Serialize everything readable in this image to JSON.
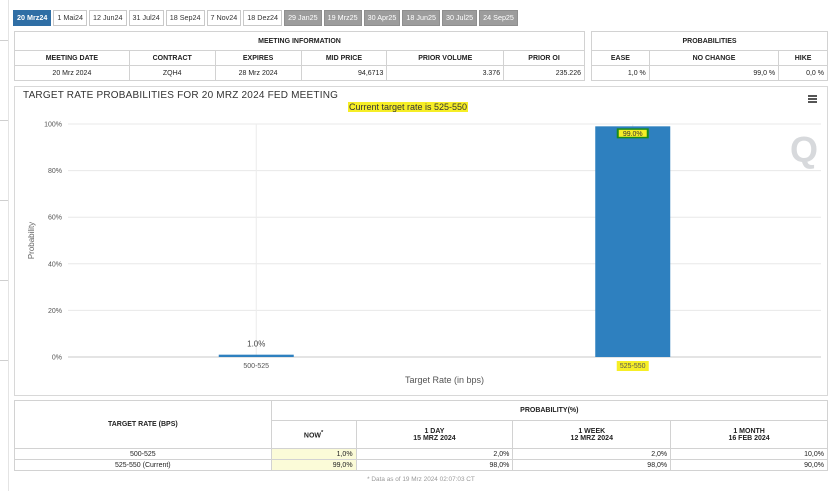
{
  "tabs": [
    {
      "label": "20 Mrz24",
      "state": "active"
    },
    {
      "label": "1 Mai24",
      "state": "normal"
    },
    {
      "label": "12 Jun24",
      "state": "normal"
    },
    {
      "label": "31 Jul24",
      "state": "normal"
    },
    {
      "label": "18 Sep24",
      "state": "normal"
    },
    {
      "label": "7 Nov24",
      "state": "normal"
    },
    {
      "label": "18 Dez24",
      "state": "normal"
    },
    {
      "label": "29 Jan25",
      "state": "gray"
    },
    {
      "label": "19 Mrz25",
      "state": "gray"
    },
    {
      "label": "30 Apr25",
      "state": "gray"
    },
    {
      "label": "18 Jun25",
      "state": "gray"
    },
    {
      "label": "30 Jul25",
      "state": "gray"
    },
    {
      "label": "24 Sep25",
      "state": "gray"
    }
  ],
  "meeting_info": {
    "header": "MEETING INFORMATION",
    "columns": [
      "MEETING DATE",
      "CONTRACT",
      "EXPIRES",
      "MID PRICE",
      "PRIOR VOLUME",
      "PRIOR OI"
    ],
    "row": [
      "20 Mrz 2024",
      "ZQH4",
      "28 Mrz 2024",
      "94,6713",
      "3.376",
      "235.226"
    ]
  },
  "probabilities": {
    "header": "PROBABILITIES",
    "columns": [
      "EASE",
      "NO CHANGE",
      "HIKE"
    ],
    "row": [
      "1,0 %",
      "99,0 %",
      "0,0 %"
    ]
  },
  "chart": {
    "title": "TARGET RATE PROBABILITIES FOR 20 MRZ 2024 FED MEETING",
    "subtitle": "Current target rate is 525-550",
    "colors": {
      "bar": "#2e80bf",
      "label_bg": "#f6ee26",
      "label_box": "#1a8a1a"
    }
  },
  "chart_data": {
    "type": "bar",
    "title": "TARGET RATE PROBABILITIES FOR 20 MRZ 2024 FED MEETING",
    "subtitle": "Current target rate is 525-550",
    "categories": [
      "500-525",
      "525-550"
    ],
    "values": [
      1.0,
      99.0
    ],
    "data_labels": [
      "1.0%",
      "99.0%"
    ],
    "highlighted_category": "525-550",
    "xlabel": "Target Rate (in bps)",
    "ylabel": "Probability",
    "ylim": [
      0,
      100
    ],
    "yticks": [
      "0%",
      "20%",
      "40%",
      "60%",
      "80%",
      "100%"
    ],
    "grid": true
  },
  "target_table": {
    "rate_header": "TARGET RATE (BPS)",
    "prob_header": "PROBABILITY(%)",
    "now_label": "NOW",
    "now_mark": "*",
    "periods": [
      {
        "line1": "1 DAY",
        "line2": "15 MRZ 2024"
      },
      {
        "line1": "1 WEEK",
        "line2": "12 MRZ 2024"
      },
      {
        "line1": "1 MONTH",
        "line2": "16 FEB 2024"
      }
    ],
    "rows": [
      {
        "rate": "500-525",
        "now": "1,0%",
        "d1": "2,0%",
        "w1": "2,0%",
        "m1": "10,0%"
      },
      {
        "rate": "525-550 (Current)",
        "now": "99,0%",
        "d1": "98,0%",
        "w1": "98,0%",
        "m1": "90,0%"
      }
    ],
    "footnote": "* Data as of 19 Mrz 2024 02:07:03 CT"
  }
}
